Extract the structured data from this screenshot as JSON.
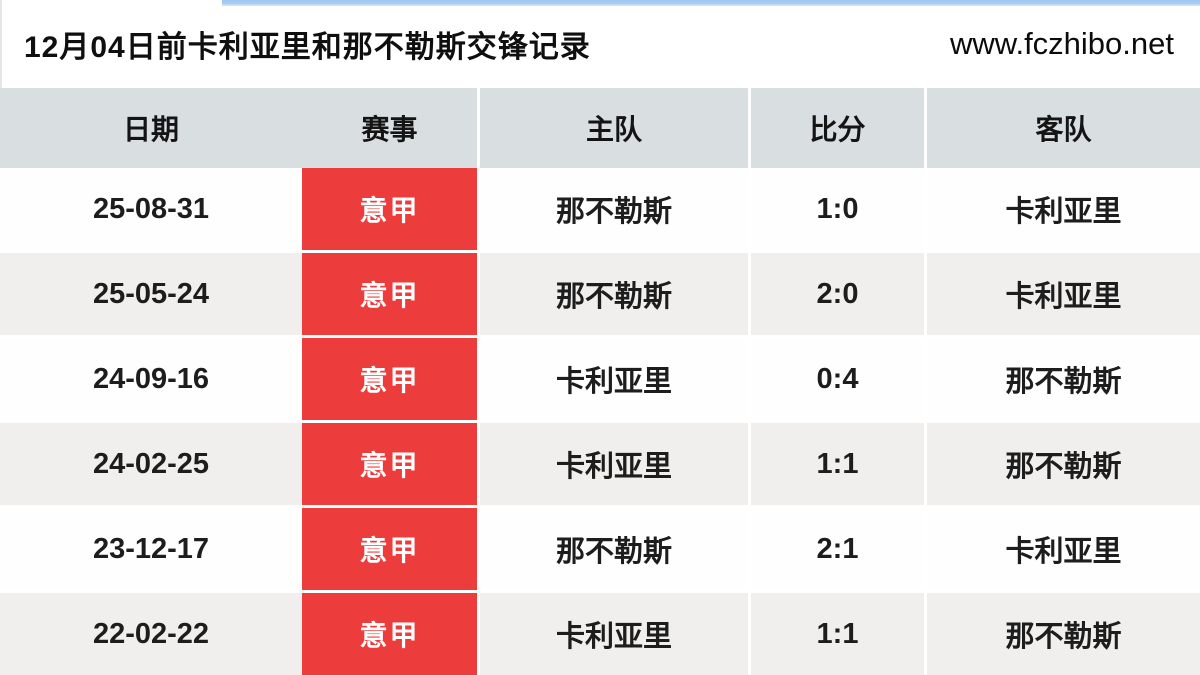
{
  "page": {
    "title": "12月04日前卡利亚里和那不勒斯交锋记录",
    "site_url": "www.fczhibo.net"
  },
  "table": {
    "columns": [
      {
        "key": "date",
        "label": "日期"
      },
      {
        "key": "competition",
        "label": "赛事"
      },
      {
        "key": "home",
        "label": "主队"
      },
      {
        "key": "score",
        "label": "比分"
      },
      {
        "key": "away",
        "label": "客队"
      }
    ],
    "rows": [
      {
        "date": "25-08-31",
        "competition": "意甲",
        "home": "那不勒斯",
        "score": "1:0",
        "away": "卡利亚里"
      },
      {
        "date": "25-05-24",
        "competition": "意甲",
        "home": "那不勒斯",
        "score": "2:0",
        "away": "卡利亚里"
      },
      {
        "date": "24-09-16",
        "competition": "意甲",
        "home": "卡利亚里",
        "score": "0:4",
        "away": "那不勒斯"
      },
      {
        "date": "24-02-25",
        "competition": "意甲",
        "home": "卡利亚里",
        "score": "1:1",
        "away": "那不勒斯"
      },
      {
        "date": "23-12-17",
        "competition": "意甲",
        "home": "那不勒斯",
        "score": "2:1",
        "away": "卡利亚里"
      },
      {
        "date": "22-02-22",
        "competition": "意甲",
        "home": "卡利亚里",
        "score": "1:1",
        "away": "那不勒斯"
      }
    ]
  },
  "colors": {
    "badge_red": "#ed3c3c",
    "header_bg": "#d9dee1",
    "alt_row_bg": "#f0efee",
    "top_strip_blue": "#a3c9f0",
    "divider_white": "#ffffff"
  }
}
